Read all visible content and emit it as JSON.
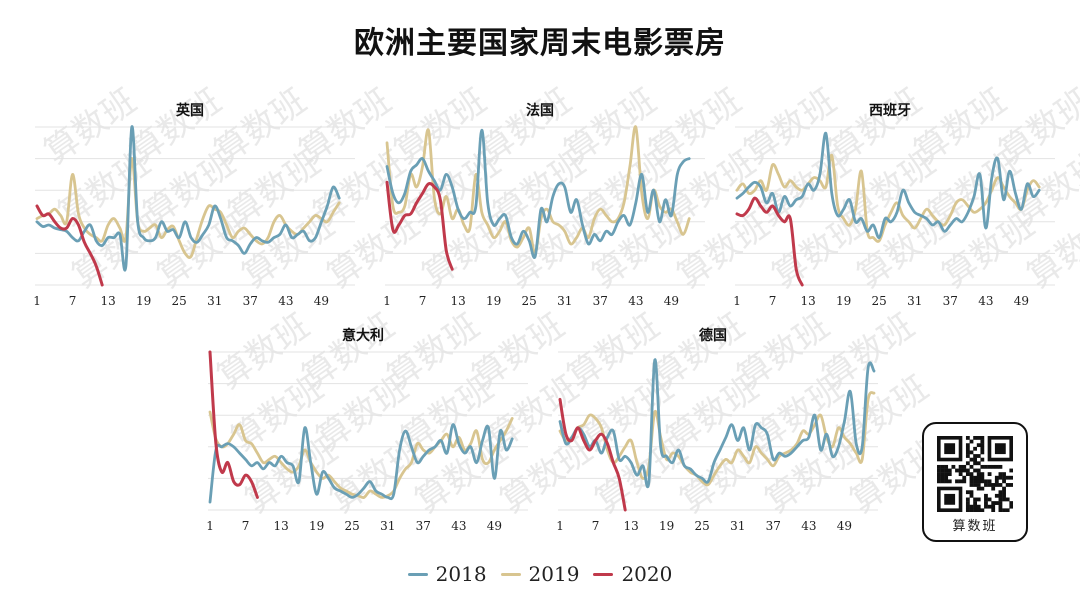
{
  "title": "欧洲主要国家周末电影票房",
  "watermark_text": "算数班",
  "colors": {
    "2018": "#6a9fb5",
    "2019": "#d8c590",
    "2020": "#c0394b"
  },
  "legend": [
    {
      "key": "2018",
      "label": "2018"
    },
    {
      "key": "2019",
      "label": "2019"
    },
    {
      "key": "2020",
      "label": "2020"
    }
  ],
  "qr": {
    "caption": "算数班"
  },
  "chart_data": [
    {
      "type": "line",
      "title": "英国",
      "x_ticks": [
        1,
        7,
        13,
        19,
        25,
        31,
        37,
        43,
        49
      ],
      "ylim": [
        0,
        100
      ],
      "series": [
        {
          "name": "2018",
          "values": [
            40,
            37,
            38,
            36,
            35,
            34,
            30,
            28,
            34,
            38,
            28,
            25,
            30,
            30,
            32,
            12,
            100,
            40,
            30,
            28,
            30,
            40,
            34,
            35,
            30,
            40,
            30,
            27,
            32,
            38,
            50,
            42,
            30,
            28,
            25,
            20,
            26,
            30,
            28,
            27,
            30,
            32,
            38,
            30,
            32,
            34,
            28,
            30,
            40,
            50,
            62,
            55
          ]
        },
        {
          "name": "2019",
          "values": [
            42,
            44,
            45,
            48,
            44,
            40,
            70,
            45,
            36,
            32,
            30,
            28,
            38,
            42,
            36,
            30,
            80,
            40,
            34,
            36,
            38,
            30,
            35,
            37,
            28,
            20,
            18,
            30,
            42,
            50,
            48,
            46,
            38,
            30,
            34,
            36,
            32,
            28,
            26,
            30,
            40,
            44,
            38,
            34,
            32,
            36,
            40,
            44,
            42,
            40,
            46,
            52
          ]
        },
        {
          "name": "2020",
          "values": [
            50,
            44,
            45,
            40,
            36,
            36,
            42,
            38,
            27,
            20,
            12,
            0
          ]
        }
      ]
    },
    {
      "type": "line",
      "title": "法国",
      "x_ticks": [
        1,
        7,
        13,
        19,
        25,
        31,
        37,
        43,
        49
      ],
      "ylim": [
        0,
        100
      ],
      "series": [
        {
          "name": "2018",
          "values": [
            75,
            58,
            52,
            58,
            72,
            76,
            80,
            72,
            66,
            60,
            70,
            62,
            48,
            42,
            46,
            50,
            98,
            52,
            38,
            42,
            44,
            30,
            26,
            34,
            28,
            18,
            48,
            40,
            56,
            64,
            62,
            46,
            54,
            38,
            26,
            32,
            28,
            34,
            32,
            40,
            44,
            38,
            52,
            70,
            46,
            60,
            40,
            54,
            44,
            70,
            78,
            80
          ]
        },
        {
          "name": "2019",
          "values": [
            90,
            50,
            46,
            50,
            70,
            62,
            75,
            98,
            55,
            45,
            56,
            42,
            48,
            38,
            36,
            70,
            46,
            38,
            30,
            34,
            40,
            28,
            24,
            30,
            36,
            20,
            42,
            48,
            40,
            38,
            34,
            26,
            30,
            36,
            30,
            42,
            48,
            44,
            40,
            42,
            52,
            75,
            100,
            58,
            42,
            60,
            50,
            46,
            48,
            40,
            32,
            42
          ]
        },
        {
          "name": "2020",
          "values": [
            65,
            35,
            38,
            44,
            45,
            52,
            58,
            64,
            62,
            54,
            22,
            10
          ]
        }
      ]
    },
    {
      "type": "line",
      "title": "西班牙",
      "x_ticks": [
        1,
        7,
        13,
        19,
        25,
        31,
        37,
        43,
        49
      ],
      "ylim": [
        0,
        100
      ],
      "series": [
        {
          "name": "2018",
          "values": [
            55,
            58,
            62,
            65,
            62,
            52,
            58,
            46,
            56,
            50,
            54,
            56,
            64,
            60,
            70,
            96,
            58,
            44,
            48,
            54,
            40,
            42,
            34,
            38,
            30,
            42,
            40,
            46,
            60,
            52,
            46,
            44,
            42,
            38,
            40,
            34,
            38,
            42,
            40,
            46,
            56,
            70,
            36,
            68,
            80,
            54,
            72,
            58,
            48,
            64,
            56,
            60
          ]
        },
        {
          "name": "2019",
          "values": [
            60,
            64,
            58,
            60,
            66,
            60,
            76,
            70,
            62,
            66,
            62,
            60,
            64,
            68,
            66,
            62,
            82,
            50,
            42,
            38,
            48,
            72,
            34,
            30,
            28,
            38,
            46,
            52,
            44,
            40,
            36,
            42,
            48,
            44,
            40,
            38,
            44,
            52,
            54,
            50,
            46,
            48,
            52,
            60,
            68,
            62,
            56,
            52,
            48,
            60,
            66,
            62
          ]
        },
        {
          "name": "2020",
          "values": [
            45,
            44,
            48,
            55,
            50,
            46,
            50,
            44,
            40,
            42,
            10,
            0
          ]
        }
      ]
    },
    {
      "type": "line",
      "title": "意大利",
      "x_ticks": [
        1,
        7,
        13,
        19,
        25,
        31,
        37,
        43,
        49
      ],
      "ylim": [
        0,
        100
      ],
      "series": [
        {
          "name": "2018",
          "values": [
            5,
            38,
            40,
            42,
            40,
            36,
            32,
            28,
            30,
            26,
            30,
            28,
            34,
            30,
            28,
            18,
            52,
            30,
            10,
            24,
            20,
            14,
            12,
            10,
            8,
            10,
            14,
            18,
            12,
            10,
            8,
            10,
            38,
            50,
            40,
            30,
            34,
            38,
            40,
            44,
            36,
            54,
            42,
            36,
            40,
            30,
            44,
            52,
            20,
            50,
            38,
            45
          ]
        },
        {
          "name": "2019",
          "values": [
            62,
            45,
            40,
            42,
            48,
            54,
            44,
            42,
            36,
            30,
            32,
            34,
            30,
            26,
            24,
            28,
            38,
            30,
            24,
            20,
            22,
            18,
            14,
            12,
            10,
            9,
            8,
            12,
            10,
            8,
            9,
            12,
            20,
            26,
            30,
            42,
            38,
            36,
            40,
            44,
            48,
            40,
            46,
            38,
            42,
            50,
            32,
            30,
            38,
            44,
            50,
            58
          ]
        },
        {
          "name": "2020",
          "values": [
            100,
            42,
            24,
            30,
            18,
            16,
            22,
            18,
            8
          ]
        }
      ]
    },
    {
      "type": "line",
      "title": "德国",
      "x_ticks": [
        1,
        7,
        13,
        19,
        25,
        31,
        37,
        43,
        49
      ],
      "ylim": [
        0,
        100
      ],
      "series": [
        {
          "name": "2018",
          "values": [
            56,
            42,
            46,
            52,
            48,
            40,
            44,
            36,
            46,
            50,
            32,
            34,
            30,
            22,
            28,
            18,
            95,
            40,
            34,
            30,
            38,
            28,
            26,
            22,
            20,
            18,
            30,
            38,
            46,
            54,
            44,
            52,
            38,
            54,
            52,
            48,
            32,
            36,
            34,
            36,
            40,
            44,
            46,
            60,
            38,
            48,
            34,
            40,
            56,
            75,
            42,
            40,
            90,
            88
          ]
        },
        {
          "name": "2019",
          "values": [
            50,
            44,
            46,
            52,
            54,
            60,
            58,
            52,
            38,
            30,
            34,
            40,
            44,
            30,
            20,
            28,
            62,
            46,
            32,
            36,
            34,
            28,
            24,
            22,
            18,
            16,
            22,
            28,
            32,
            30,
            38,
            34,
            30,
            40,
            36,
            32,
            28,
            34,
            36,
            38,
            42,
            50,
            48,
            54,
            60,
            46,
            40,
            52,
            46,
            42,
            36,
            32,
            70,
            74
          ]
        },
        {
          "name": "2020",
          "values": [
            70,
            48,
            44,
            52,
            44,
            38,
            44,
            48,
            42,
            30,
            20,
            0
          ]
        }
      ]
    }
  ]
}
